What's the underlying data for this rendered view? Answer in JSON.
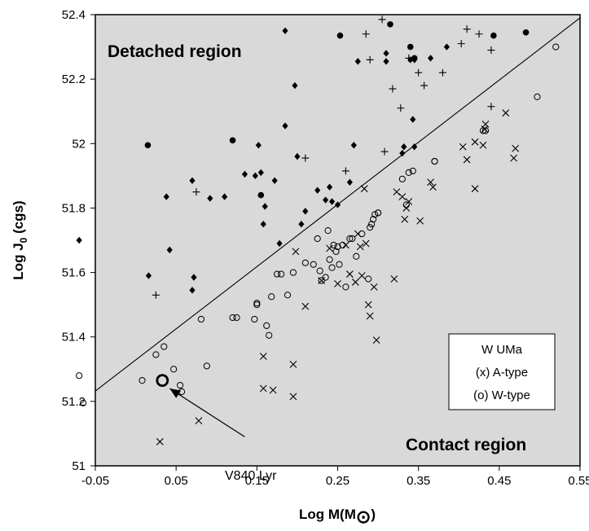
{
  "chart_data": {
    "type": "scatter",
    "xlabel": "Log M(M",
    "xlabel_symbol": "⊙",
    "xlabel_close": ")",
    "ylabel": "Log J",
    "ylabel_sub": "0",
    "ylabel_suffix": " (cgs)",
    "xlim": [
      -0.05,
      0.55
    ],
    "ylim": [
      51,
      52.4
    ],
    "x_ticks": [
      -0.05,
      0.05,
      0.15,
      0.25,
      0.35,
      0.45,
      0.55
    ],
    "x_tick_labels": [
      "-0.05",
      "0.05",
      "0.15",
      "0.25",
      "0.35",
      "0.45",
      "0.55"
    ],
    "y_ticks": [
      51,
      51.2,
      51.4,
      51.6,
      51.8,
      52,
      52.2,
      52.4
    ],
    "y_tick_labels": [
      "51",
      "51.2",
      "51.4",
      "51.6",
      "51.8",
      "52",
      "52.2",
      "52.4"
    ],
    "annotations": {
      "detached": "Detached region",
      "contact": "Contact region",
      "v840": "V840 Lyr"
    },
    "legend": {
      "title": "W UMa",
      "a_type": "(x) A-type",
      "w_type": "(o) W-type"
    },
    "boundary_line": {
      "x": [
        -0.05,
        0.55
      ],
      "y": [
        51.232,
        52.39
      ]
    },
    "highlight": {
      "name": "V840 Lyr",
      "x": 0.033,
      "y": 51.265
    },
    "arrow": {
      "from": [
        0.135,
        51.09
      ],
      "to": [
        0.042,
        51.24
      ]
    },
    "series": [
      {
        "name": "Detached (diamond)",
        "marker": "diamond",
        "points": [
          [
            -0.07,
            51.7
          ],
          [
            0.016,
            51.59
          ],
          [
            0.038,
            51.835
          ],
          [
            0.042,
            51.67
          ],
          [
            0.07,
            51.885
          ],
          [
            0.07,
            51.545
          ],
          [
            0.072,
            51.585
          ],
          [
            0.092,
            51.83
          ],
          [
            0.11,
            51.835
          ],
          [
            0.135,
            51.905
          ],
          [
            0.148,
            51.9
          ],
          [
            0.152,
            51.995
          ],
          [
            0.155,
            51.91
          ],
          [
            0.158,
            51.75
          ],
          [
            0.16,
            51.805
          ],
          [
            0.172,
            51.885
          ],
          [
            0.178,
            51.69
          ],
          [
            0.185,
            52.35
          ],
          [
            0.185,
            52.055
          ],
          [
            0.197,
            52.18
          ],
          [
            0.2,
            51.96
          ],
          [
            0.205,
            51.75
          ],
          [
            0.21,
            51.79
          ],
          [
            0.225,
            51.855
          ],
          [
            0.235,
            51.825
          ],
          [
            0.24,
            51.865
          ],
          [
            0.243,
            51.82
          ],
          [
            0.25,
            51.81
          ],
          [
            0.265,
            51.88
          ],
          [
            0.27,
            51.995
          ],
          [
            0.275,
            52.255
          ],
          [
            0.31,
            52.255
          ],
          [
            0.31,
            52.28
          ],
          [
            0.33,
            51.97
          ],
          [
            0.332,
            51.99
          ],
          [
            0.34,
            52.26
          ],
          [
            0.345,
            52.26
          ],
          [
            0.343,
            52.075
          ],
          [
            0.365,
            52.265
          ],
          [
            0.385,
            52.3
          ],
          [
            0.345,
            51.99
          ]
        ]
      },
      {
        "name": "Detached (filled circle)",
        "marker": "dot",
        "points": [
          [
            0.015,
            51.995
          ],
          [
            0.12,
            52.01
          ],
          [
            0.155,
            51.84
          ],
          [
            0.253,
            52.335
          ],
          [
            0.315,
            52.37
          ],
          [
            0.34,
            52.3
          ],
          [
            0.345,
            52.265
          ],
          [
            0.443,
            52.335
          ],
          [
            0.483,
            52.345
          ]
        ]
      },
      {
        "name": "Detached (plus)",
        "marker": "plus",
        "points": [
          [
            0.025,
            51.53
          ],
          [
            0.075,
            51.85
          ],
          [
            0.21,
            51.955
          ],
          [
            0.26,
            51.915
          ],
          [
            0.285,
            52.34
          ],
          [
            0.29,
            52.26
          ],
          [
            0.305,
            52.385
          ],
          [
            0.308,
            51.975
          ],
          [
            0.318,
            52.17
          ],
          [
            0.328,
            52.11
          ],
          [
            0.338,
            52.265
          ],
          [
            0.35,
            52.22
          ],
          [
            0.357,
            52.18
          ],
          [
            0.38,
            52.22
          ],
          [
            0.403,
            52.31
          ],
          [
            0.41,
            52.355
          ],
          [
            0.425,
            52.34
          ],
          [
            0.44,
            52.29
          ],
          [
            0.44,
            52.115
          ]
        ]
      },
      {
        "name": "W UMa A-type",
        "marker": "cross",
        "points": [
          [
            0.03,
            51.075
          ],
          [
            0.078,
            51.14
          ],
          [
            0.158,
            51.24
          ],
          [
            0.158,
            51.34
          ],
          [
            0.17,
            51.235
          ],
          [
            0.195,
            51.215
          ],
          [
            0.195,
            51.315
          ],
          [
            0.198,
            51.665
          ],
          [
            0.21,
            51.495
          ],
          [
            0.23,
            51.575
          ],
          [
            0.24,
            51.675
          ],
          [
            0.25,
            51.565
          ],
          [
            0.26,
            51.685
          ],
          [
            0.265,
            51.595
          ],
          [
            0.272,
            51.57
          ],
          [
            0.275,
            51.72
          ],
          [
            0.278,
            51.68
          ],
          [
            0.28,
            51.59
          ],
          [
            0.283,
            51.86
          ],
          [
            0.285,
            51.69
          ],
          [
            0.288,
            51.5
          ],
          [
            0.29,
            51.465
          ],
          [
            0.295,
            51.555
          ],
          [
            0.298,
            51.39
          ],
          [
            0.32,
            51.58
          ],
          [
            0.323,
            51.85
          ],
          [
            0.33,
            51.835
          ],
          [
            0.333,
            51.765
          ],
          [
            0.335,
            51.8
          ],
          [
            0.338,
            51.82
          ],
          [
            0.352,
            51.76
          ],
          [
            0.365,
            51.88
          ],
          [
            0.368,
            51.865
          ],
          [
            0.405,
            51.99
          ],
          [
            0.41,
            51.95
          ],
          [
            0.42,
            52.005
          ],
          [
            0.42,
            51.86
          ],
          [
            0.43,
            51.995
          ],
          [
            0.432,
            52.045
          ],
          [
            0.433,
            52.06
          ],
          [
            0.458,
            52.095
          ],
          [
            0.468,
            51.955
          ],
          [
            0.47,
            51.985
          ]
        ]
      },
      {
        "name": "W UMa W-type",
        "marker": "circle",
        "points": [
          [
            -0.07,
            51.28
          ],
          [
            -0.065,
            51.195
          ],
          [
            0.008,
            51.265
          ],
          [
            0.025,
            51.345
          ],
          [
            0.035,
            51.37
          ],
          [
            0.047,
            51.3
          ],
          [
            0.055,
            51.25
          ],
          [
            0.057,
            51.23
          ],
          [
            0.081,
            51.455
          ],
          [
            0.088,
            51.31
          ],
          [
            0.12,
            51.46
          ],
          [
            0.125,
            51.46
          ],
          [
            0.147,
            51.455
          ],
          [
            0.15,
            51.5
          ],
          [
            0.15,
            51.505
          ],
          [
            0.162,
            51.435
          ],
          [
            0.165,
            51.405
          ],
          [
            0.168,
            51.525
          ],
          [
            0.175,
            51.595
          ],
          [
            0.18,
            51.595
          ],
          [
            0.188,
            51.53
          ],
          [
            0.195,
            51.6
          ],
          [
            0.21,
            51.63
          ],
          [
            0.22,
            51.625
          ],
          [
            0.225,
            51.705
          ],
          [
            0.228,
            51.605
          ],
          [
            0.23,
            51.575
          ],
          [
            0.235,
            51.585
          ],
          [
            0.238,
            51.73
          ],
          [
            0.24,
            51.64
          ],
          [
            0.243,
            51.615
          ],
          [
            0.245,
            51.685
          ],
          [
            0.248,
            51.665
          ],
          [
            0.25,
            51.68
          ],
          [
            0.252,
            51.625
          ],
          [
            0.256,
            51.685
          ],
          [
            0.26,
            51.555
          ],
          [
            0.265,
            51.705
          ],
          [
            0.268,
            51.705
          ],
          [
            0.273,
            51.65
          ],
          [
            0.28,
            51.72
          ],
          [
            0.288,
            51.58
          ],
          [
            0.29,
            51.74
          ],
          [
            0.292,
            51.75
          ],
          [
            0.294,
            51.765
          ],
          [
            0.296,
            51.78
          ],
          [
            0.3,
            51.785
          ],
          [
            0.3,
            51.785
          ],
          [
            0.33,
            51.89
          ],
          [
            0.335,
            51.81
          ],
          [
            0.338,
            51.91
          ],
          [
            0.343,
            51.915
          ],
          [
            0.37,
            51.945
          ],
          [
            0.37,
            51.945
          ],
          [
            0.43,
            52.04
          ],
          [
            0.433,
            52.04
          ],
          [
            0.497,
            52.145
          ],
          [
            0.52,
            52.3
          ]
        ]
      }
    ]
  }
}
